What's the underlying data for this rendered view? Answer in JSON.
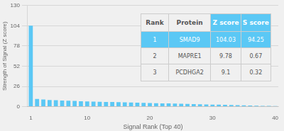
{
  "chart_data": {
    "type": "bar",
    "xlabel": "Signal Rank (Top 40)",
    "ylabel": "Strength of Signal (Z score)",
    "x": [
      1,
      2,
      3,
      4,
      5,
      6,
      7,
      8,
      9,
      10,
      11,
      12,
      13,
      14,
      15,
      16,
      17,
      18,
      19,
      20,
      21,
      22,
      23,
      24,
      25,
      26,
      27,
      28,
      29,
      30,
      31,
      32,
      33,
      34,
      35,
      36,
      37,
      38,
      39,
      40
    ],
    "values": [
      104.03,
      9.78,
      9.1,
      8.5,
      8.2,
      7.9,
      7.6,
      7.3,
      7.0,
      6.8,
      6.5,
      6.3,
      6.1,
      5.9,
      5.7,
      5.5,
      5.3,
      5.1,
      4.9,
      4.7,
      4.5,
      4.3,
      4.1,
      3.9,
      3.7,
      3.5,
      3.3,
      3.1,
      2.9,
      2.7,
      2.5,
      2.3,
      2.1,
      1.9,
      1.7,
      1.5,
      1.3,
      1.1,
      0.9,
      0.7
    ],
    "color": "#5bc8f5",
    "xlim": [
      0.5,
      40.5
    ],
    "xticks": [
      1,
      10,
      20,
      30,
      40
    ],
    "ylim": [
      0,
      130
    ],
    "yticks": [
      0,
      26,
      52,
      78,
      104,
      130
    ],
    "grid": true,
    "table": [
      [
        "Rank",
        "Protein",
        "Z score",
        "S score"
      ],
      [
        "1",
        "SMAD9",
        "104.03",
        "94.25"
      ],
      [
        "2",
        "MAPRE1",
        "9.78",
        "0.67"
      ],
      [
        "3",
        "PCDHGA2",
        "9.1",
        "0.32"
      ]
    ]
  }
}
